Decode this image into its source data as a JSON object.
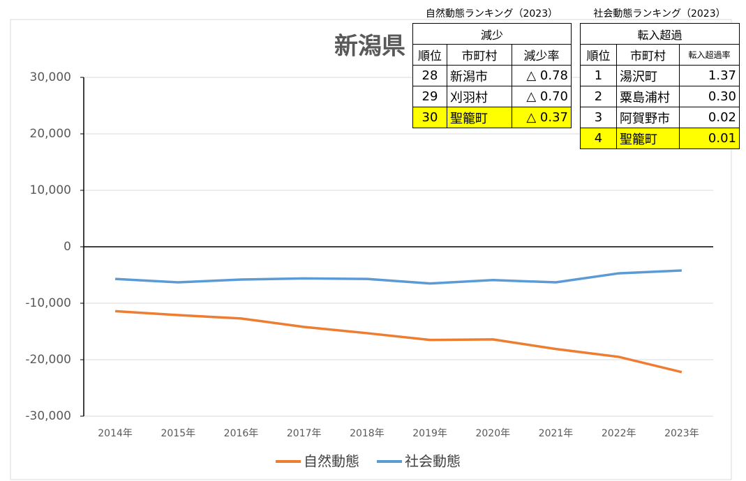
{
  "chart_data": {
    "type": "line",
    "title": "新潟県",
    "categories": [
      "2014年",
      "2015年",
      "2016年",
      "2017年",
      "2018年",
      "2019年",
      "2020年",
      "2021年",
      "2022年",
      "2023年"
    ],
    "series": [
      {
        "name": "自然動態",
        "color": "#ed7d31",
        "values": [
          -11400,
          -12100,
          -12700,
          -14200,
          -15300,
          -16500,
          -16400,
          -18100,
          -19500,
          -22200
        ]
      },
      {
        "name": "社会動態",
        "color": "#5b9bd5",
        "values": [
          -5700,
          -6300,
          -5800,
          -5600,
          -5700,
          -6500,
          -5900,
          -6300,
          -4700,
          -4200
        ]
      }
    ],
    "ylim": [
      -30000,
      30000
    ],
    "yticks": [
      {
        "value": -30000,
        "label": "-30,000"
      },
      {
        "value": -20000,
        "label": "-20,000"
      },
      {
        "value": -10000,
        "label": "-10,000"
      },
      0,
      {
        "value": 10000,
        "label": "10,000"
      },
      {
        "value": 20000,
        "label": "20,000"
      },
      {
        "value": 30000,
        "label": "30,000"
      }
    ],
    "grid": true,
    "legend": "bottom"
  },
  "tables": [
    {
      "caption": "自然動態ランキング（2023）",
      "group": "減少",
      "columns": [
        "順位",
        "市町村",
        "減少率"
      ],
      "rows": [
        [
          "28",
          "新潟市",
          "△ 0.78"
        ],
        [
          "29",
          "刈羽村",
          "△ 0.70"
        ],
        [
          "30",
          "聖籠町",
          "△ 0.37"
        ]
      ],
      "highlight_row": 2,
      "highlight_color": "#ffff00"
    },
    {
      "caption": "社会動態ランキング（2023）",
      "group": "転入超過",
      "columns": [
        "順位",
        "市町村",
        "転入超過率"
      ],
      "rows": [
        [
          "1",
          "湯沢町",
          "1.37"
        ],
        [
          "2",
          "粟島浦村",
          "0.30"
        ],
        [
          "3",
          "阿賀野市",
          "0.02"
        ],
        [
          "4",
          "聖籠町",
          "0.01"
        ]
      ],
      "highlight_row": 3,
      "highlight_color": "#ffff00"
    }
  ]
}
